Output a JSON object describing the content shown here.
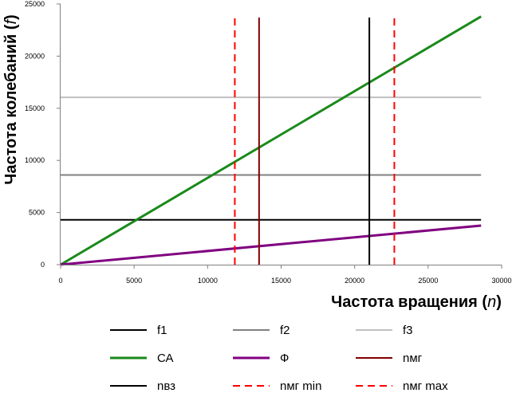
{
  "chart_data": {
    "type": "line",
    "xlabel": "Частота вращения",
    "xlabel_var": "n",
    "ylabel": "Частота колебаний",
    "ylabel_var": "f",
    "xlim": [
      0,
      30000
    ],
    "ylim": [
      0,
      25000
    ],
    "x_ticks": [
      "0",
      "5000",
      "10000",
      "15000",
      "20000",
      "25000",
      "30000"
    ],
    "y_ticks": [
      "0",
      "5000",
      "10000",
      "15000",
      "20000",
      "25000"
    ],
    "grid": false,
    "legend_position": "bottom",
    "series": [
      {
        "name": "f1",
        "kind": "hline",
        "color": "#000000",
        "dash": "solid",
        "width": 2,
        "x": [
          0,
          28600
        ],
        "y": [
          4300,
          4300
        ]
      },
      {
        "name": "f2",
        "kind": "hline",
        "color": "#808080",
        "dash": "solid",
        "width": 2,
        "x": [
          0,
          28600
        ],
        "y": [
          8600,
          8600
        ]
      },
      {
        "name": "f3",
        "kind": "hline",
        "color": "#c0c0c0",
        "dash": "solid",
        "width": 2,
        "x": [
          0,
          28600
        ],
        "y": [
          16050,
          16050
        ]
      },
      {
        "name": "СА",
        "kind": "line",
        "color": "#1a8a1a",
        "dash": "solid",
        "width": 3,
        "x": [
          0,
          28600
        ],
        "y": [
          0,
          23800
        ]
      },
      {
        "name": "Ф",
        "kind": "line",
        "color": "#800080",
        "dash": "solid",
        "width": 3,
        "x": [
          0,
          28600
        ],
        "y": [
          0,
          3750
        ]
      },
      {
        "name": "nмг",
        "kind": "vline",
        "color": "#800000",
        "dash": "solid",
        "width": 2,
        "x": [
          13500,
          13500
        ],
        "y": [
          0,
          23700
        ]
      },
      {
        "name": "nвз",
        "kind": "vline",
        "color": "#000000",
        "dash": "solid",
        "width": 2,
        "x": [
          21000,
          21000
        ],
        "y": [
          0,
          23700
        ]
      },
      {
        "name": "nмг min",
        "kind": "vline",
        "color": "#ff0000",
        "dash": "dashed",
        "width": 2,
        "x": [
          11850,
          11850
        ],
        "y": [
          0,
          23700
        ]
      },
      {
        "name": "nмг max",
        "kind": "vline",
        "color": "#ff0000",
        "dash": "dashed",
        "width": 2,
        "x": [
          22700,
          22700
        ],
        "y": [
          0,
          23700
        ]
      }
    ]
  }
}
